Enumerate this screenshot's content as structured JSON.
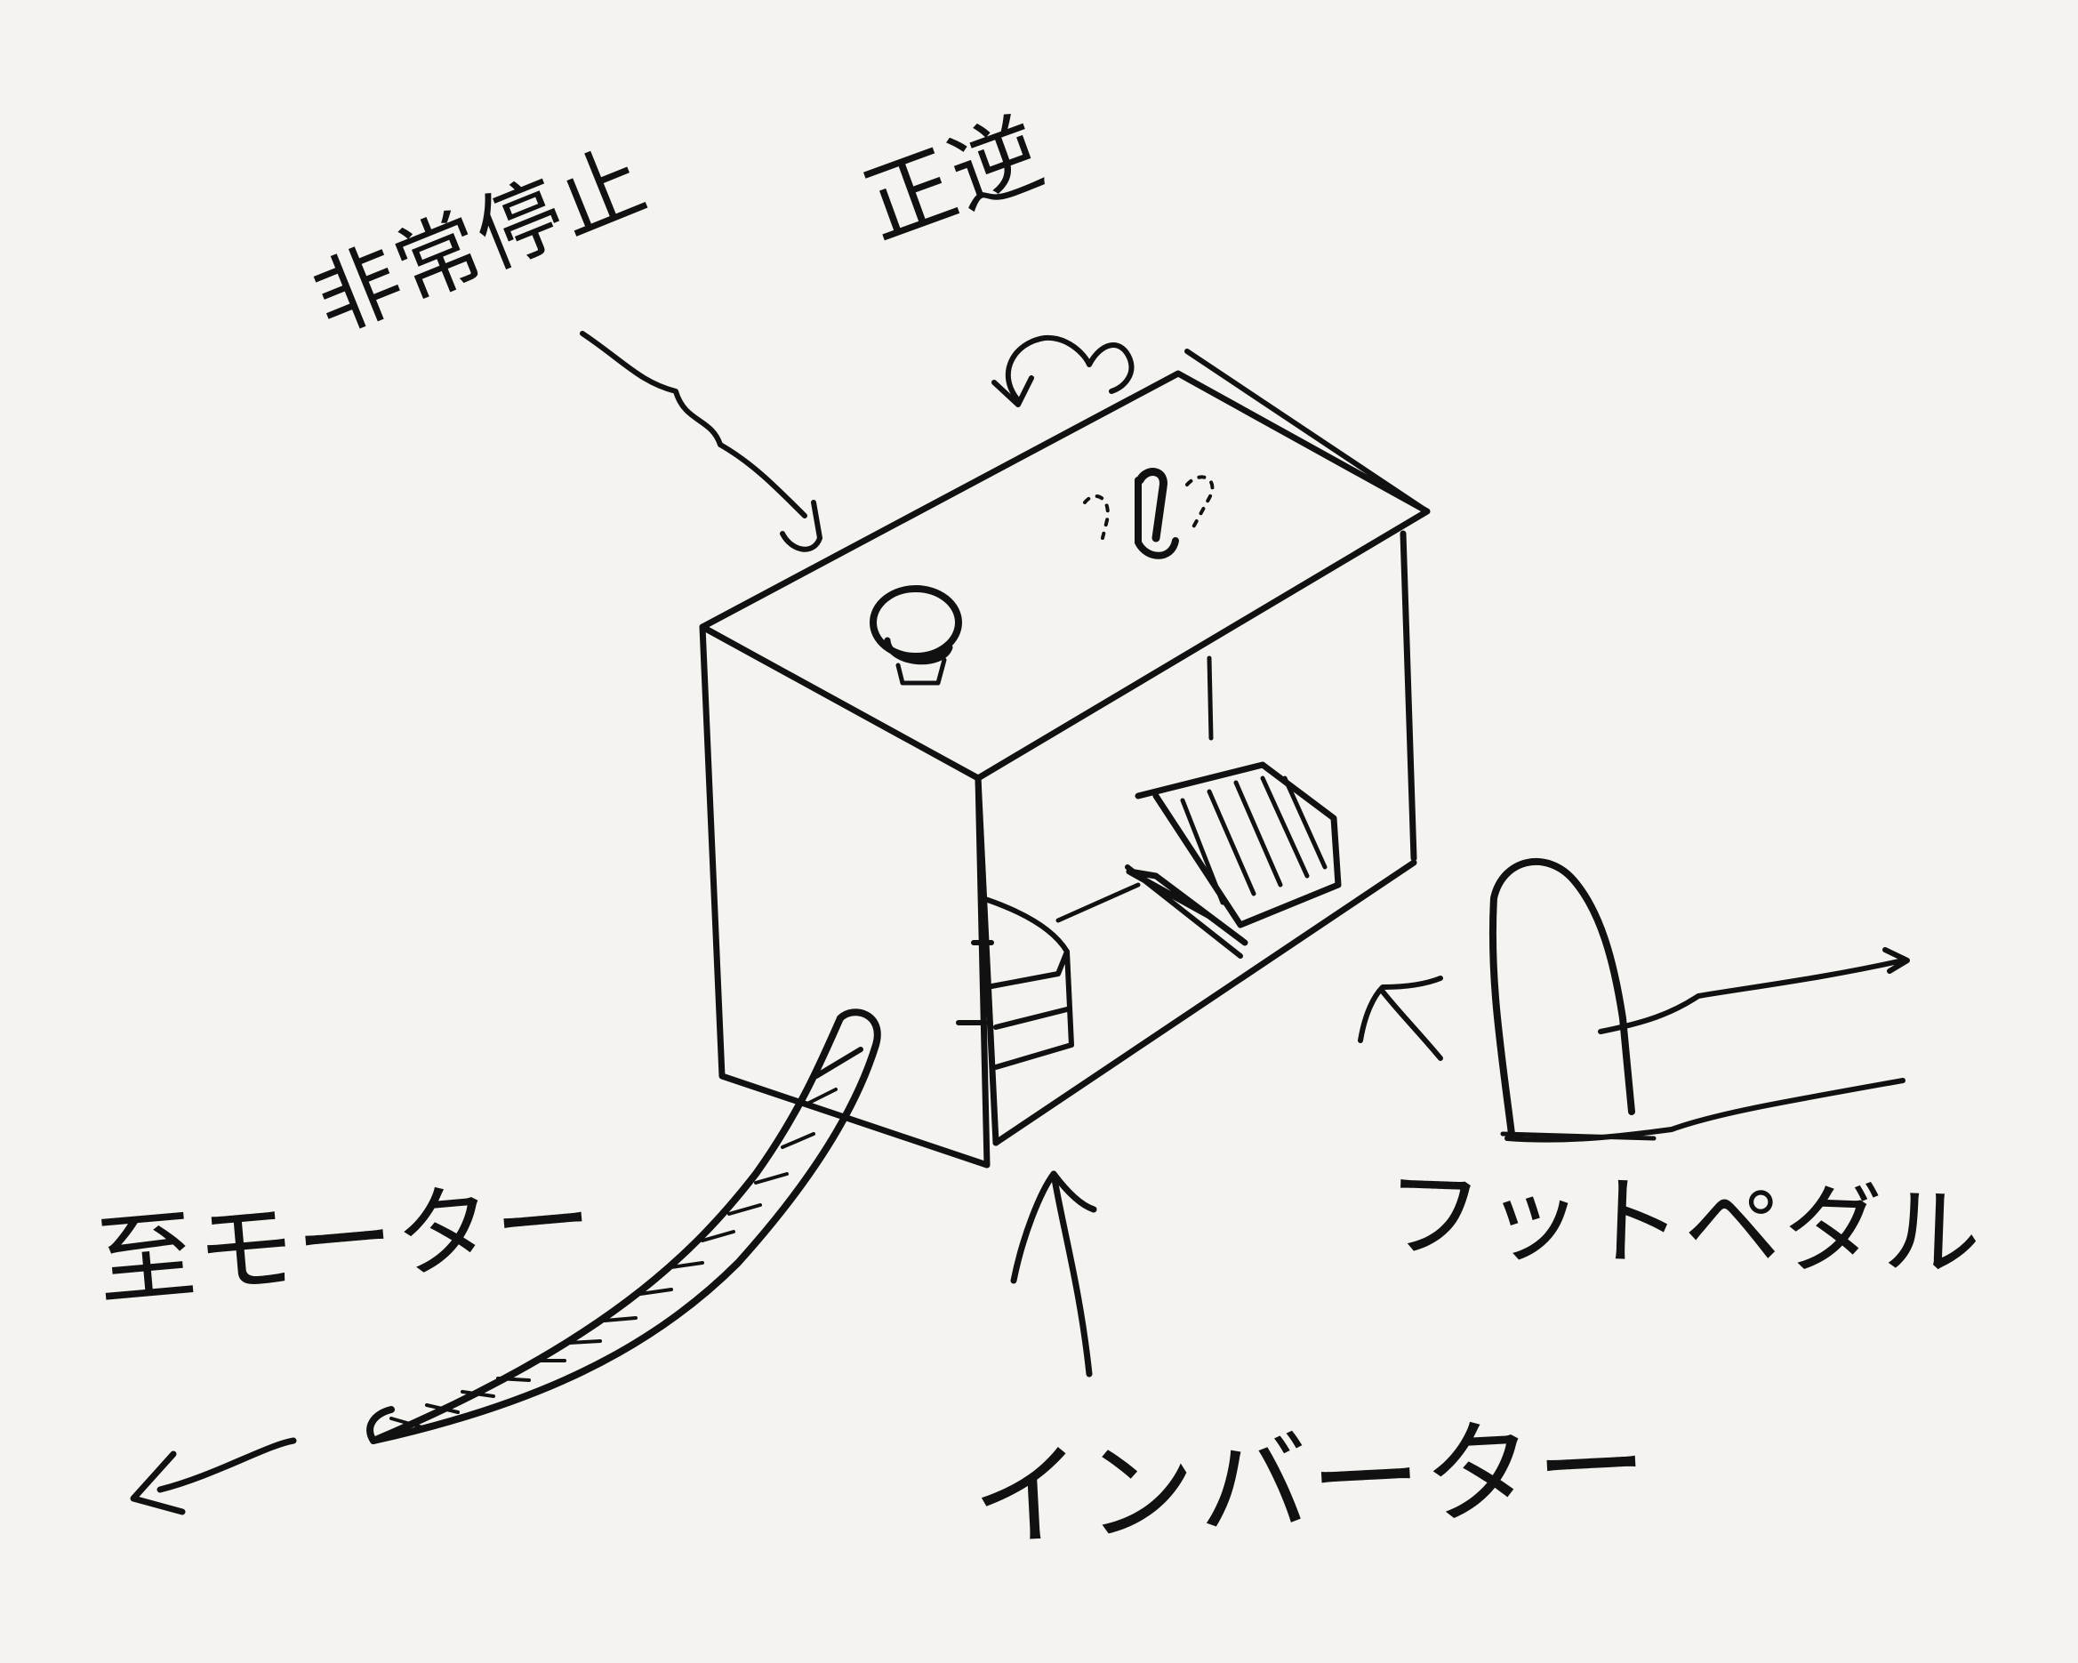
{
  "labels": {
    "emergency_stop": "非常停止",
    "forward_reverse": "正逆",
    "to_motor": "至モーター",
    "inverter": "インバーター",
    "foot_pedal": "フットペダル"
  },
  "colors": {
    "paper": "#f4f3f0",
    "ink": "#111111"
  }
}
